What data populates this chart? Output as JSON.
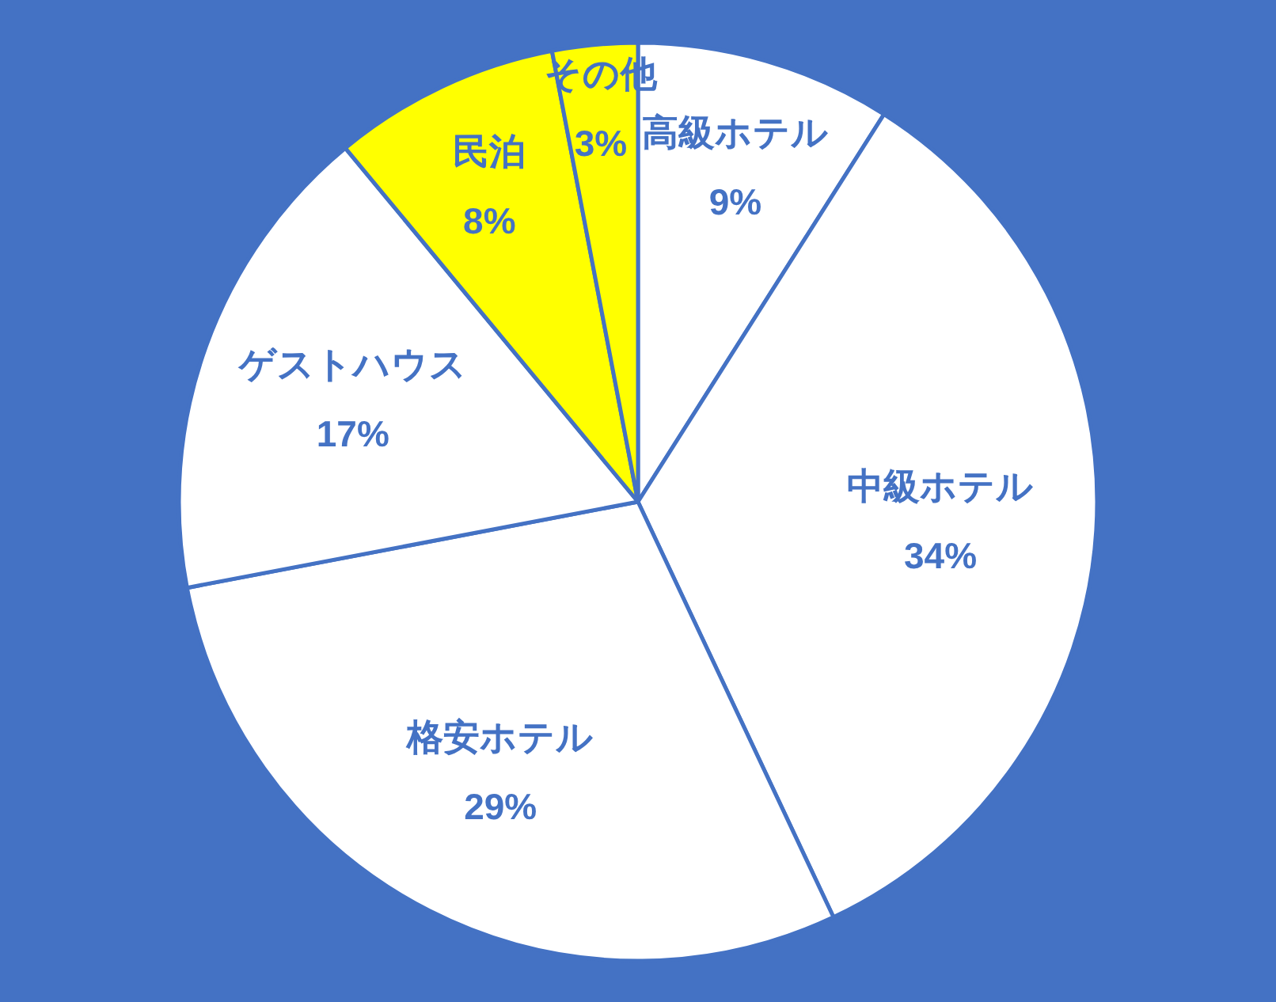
{
  "chart_data": {
    "type": "pie",
    "categories": [
      "高級ホテル",
      "中級ホテル",
      "格安ホテル",
      "ゲストハウス",
      "民泊",
      "その他"
    ],
    "values": [
      9,
      34,
      29,
      17,
      8,
      3
    ],
    "value_labels": [
      "9%",
      "34%",
      "29%",
      "17%",
      "8%",
      "3%"
    ],
    "colors": [
      "#ffffff",
      "#ffffff",
      "#ffffff",
      "#ffffff",
      "#ffff00",
      "#ffff00"
    ]
  }
}
